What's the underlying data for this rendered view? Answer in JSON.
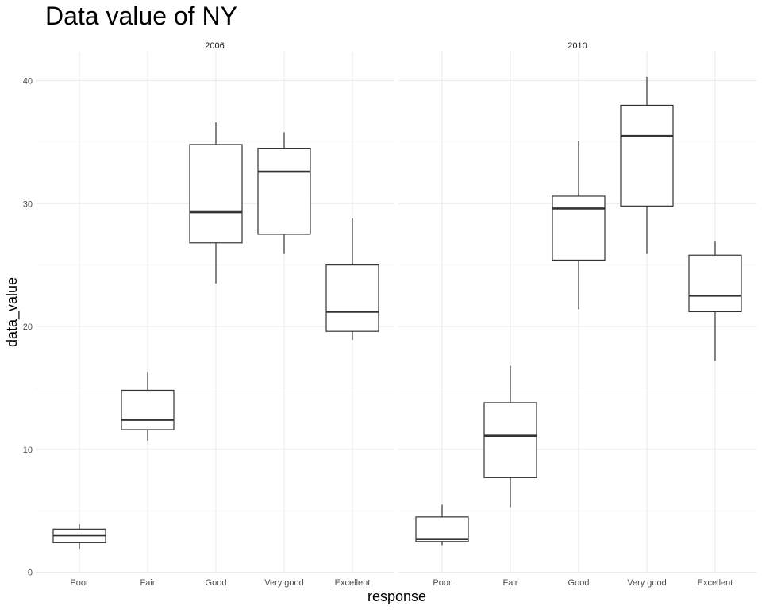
{
  "chart_data": {
    "type": "boxplot",
    "title": "Data value of NY",
    "xlabel": "response",
    "ylabel": "data_value",
    "ylim": [
      0,
      42.5
    ],
    "yticks": [
      0,
      10,
      20,
      30,
      40
    ],
    "categories": [
      "Poor",
      "Fair",
      "Good",
      "Very good",
      "Excellent"
    ],
    "grid": true,
    "panels": [
      {
        "label": "2006",
        "boxes": [
          {
            "category": "Poor",
            "min": 1.9,
            "q1": 2.4,
            "median": 3.0,
            "q3": 3.5,
            "max": 3.9
          },
          {
            "category": "Fair",
            "min": 10.7,
            "q1": 11.6,
            "median": 12.4,
            "q3": 14.8,
            "max": 16.3
          },
          {
            "category": "Good",
            "min": 23.5,
            "q1": 26.8,
            "median": 29.3,
            "q3": 34.8,
            "max": 36.6
          },
          {
            "category": "Very good",
            "min": 25.9,
            "q1": 27.5,
            "median": 32.6,
            "q3": 34.5,
            "max": 35.8
          },
          {
            "category": "Excellent",
            "min": 18.9,
            "q1": 19.6,
            "median": 21.2,
            "q3": 25.0,
            "max": 28.8
          }
        ]
      },
      {
        "label": "2010",
        "boxes": [
          {
            "category": "Poor",
            "min": 2.2,
            "q1": 2.5,
            "median": 2.7,
            "q3": 4.5,
            "max": 5.5
          },
          {
            "category": "Fair",
            "min": 5.3,
            "q1": 7.7,
            "median": 11.1,
            "q3": 13.8,
            "max": 16.8
          },
          {
            "category": "Good",
            "min": 21.4,
            "q1": 25.4,
            "median": 29.6,
            "q3": 30.6,
            "max": 35.1
          },
          {
            "category": "Very good",
            "min": 25.9,
            "q1": 29.8,
            "median": 35.5,
            "q3": 38.0,
            "max": 40.3
          },
          {
            "category": "Excellent",
            "min": 17.2,
            "q1": 21.2,
            "median": 22.5,
            "q3": 25.8,
            "max": 26.9
          }
        ]
      }
    ]
  }
}
